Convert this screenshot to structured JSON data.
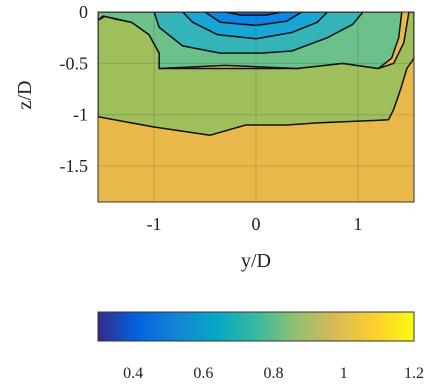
{
  "chart_data": [
    {
      "type": "filled-contour",
      "xlabel": "y/D",
      "ylabel": "z/D",
      "xlim": [
        -1.55,
        1.55
      ],
      "ylim": [
        -1.85,
        0
      ],
      "x_ticks": [
        -1,
        0,
        1
      ],
      "x_tick_labels": [
        "-1",
        "0",
        "1"
      ],
      "y_ticks": [
        0,
        -0.5,
        -1,
        -1.5
      ],
      "y_tick_labels": [
        "0",
        "-0.5",
        "-1",
        "-1.5"
      ],
      "grid": true,
      "colormap": "parula",
      "colors": {
        "level_1_0": "#e8b84a",
        "level_0_9": "#9fbe5c",
        "level_0_8": "#6cc08a",
        "level_0_7": "#34b4b8",
        "level_0_6": "#18a6d6",
        "level_0_5": "#0a86e6",
        "level_0_4": "#1a60e6",
        "contour_line": "#111111"
      },
      "regions": [
        {
          "level": 1.0,
          "points": [
            [
              -1.55,
              0
            ],
            [
              1.55,
              0
            ],
            [
              1.55,
              -1.85
            ],
            [
              -1.55,
              -1.85
            ]
          ]
        },
        {
          "level": 0.9,
          "points": [
            [
              -1.55,
              -0.08
            ],
            [
              -1.48,
              -0.04
            ],
            [
              -1.38,
              -0.07
            ],
            [
              -1.22,
              -0.1
            ],
            [
              -1.05,
              -0.22
            ],
            [
              -0.95,
              -0.4
            ],
            [
              -0.95,
              -0.55
            ],
            [
              0.4,
              -0.55
            ],
            [
              0.85,
              -0.5
            ],
            [
              1.2,
              -0.55
            ],
            [
              1.35,
              -0.5
            ],
            [
              1.45,
              -0.3
            ],
            [
              1.48,
              -0.12
            ],
            [
              1.5,
              0
            ],
            [
              1.55,
              0
            ],
            [
              1.55,
              -0.45
            ],
            [
              1.48,
              -0.55
            ],
            [
              1.42,
              -0.75
            ],
            [
              1.35,
              -0.95
            ],
            [
              1.3,
              -1.05
            ],
            [
              0.6,
              -1.08
            ],
            [
              0.3,
              -1.1
            ],
            [
              -0.1,
              -1.1
            ],
            [
              -0.45,
              -1.2
            ],
            [
              -1.0,
              -1.12
            ],
            [
              -1.55,
              -1.02
            ]
          ]
        },
        {
          "level": 0.8,
          "points": [
            [
              -1.55,
              -0.08
            ],
            [
              -1.5,
              -0.04
            ],
            [
              -1.4,
              -0.06
            ],
            [
              -1.22,
              -0.1
            ],
            [
              -1.05,
              -0.22
            ],
            [
              -0.95,
              -0.4
            ],
            [
              -0.95,
              -0.55
            ],
            [
              -0.3,
              -0.52
            ],
            [
              0.4,
              -0.55
            ],
            [
              0.85,
              -0.5
            ],
            [
              1.2,
              -0.55
            ],
            [
              1.33,
              -0.45
            ],
            [
              1.4,
              -0.25
            ],
            [
              1.43,
              0
            ],
            [
              -1.55,
              0
            ]
          ]
        },
        {
          "level": 0.7,
          "points": [
            [
              -1.0,
              0
            ],
            [
              -0.95,
              -0.15
            ],
            [
              -0.72,
              -0.33
            ],
            [
              -0.35,
              -0.4
            ],
            [
              0.05,
              -0.4
            ],
            [
              0.35,
              -0.38
            ],
            [
              0.7,
              -0.25
            ],
            [
              0.95,
              -0.12
            ],
            [
              1.05,
              0
            ]
          ]
        },
        {
          "level": 0.6,
          "points": [
            [
              -0.72,
              0
            ],
            [
              -0.62,
              -0.1
            ],
            [
              -0.38,
              -0.22
            ],
            [
              0,
              -0.26
            ],
            [
              0.35,
              -0.2
            ],
            [
              0.6,
              -0.1
            ],
            [
              0.7,
              0
            ]
          ]
        },
        {
          "level": 0.5,
          "points": [
            [
              -0.5,
              0
            ],
            [
              -0.35,
              -0.1
            ],
            [
              0,
              -0.13
            ],
            [
              0.3,
              -0.09
            ],
            [
              0.45,
              0
            ]
          ]
        },
        {
          "level": 0.4,
          "points": [
            [
              -0.3,
              0
            ],
            [
              -0.15,
              -0.03
            ],
            [
              0.1,
              -0.03
            ],
            [
              0.25,
              0
            ]
          ]
        }
      ],
      "colorbar": {
        "ticks": [
          0.4,
          0.6,
          0.8,
          1,
          1.2
        ],
        "tick_labels": [
          "0.4",
          "0.6",
          "0.8",
          "1",
          "1.2"
        ],
        "range": [
          0.3,
          1.2
        ],
        "stops": [
          "#352a87",
          "#0363e1",
          "#1485d4",
          "#06a7c6",
          "#38b99e",
          "#92bf73",
          "#d9ba56",
          "#fcce2e",
          "#f9fb0e"
        ]
      }
    }
  ]
}
